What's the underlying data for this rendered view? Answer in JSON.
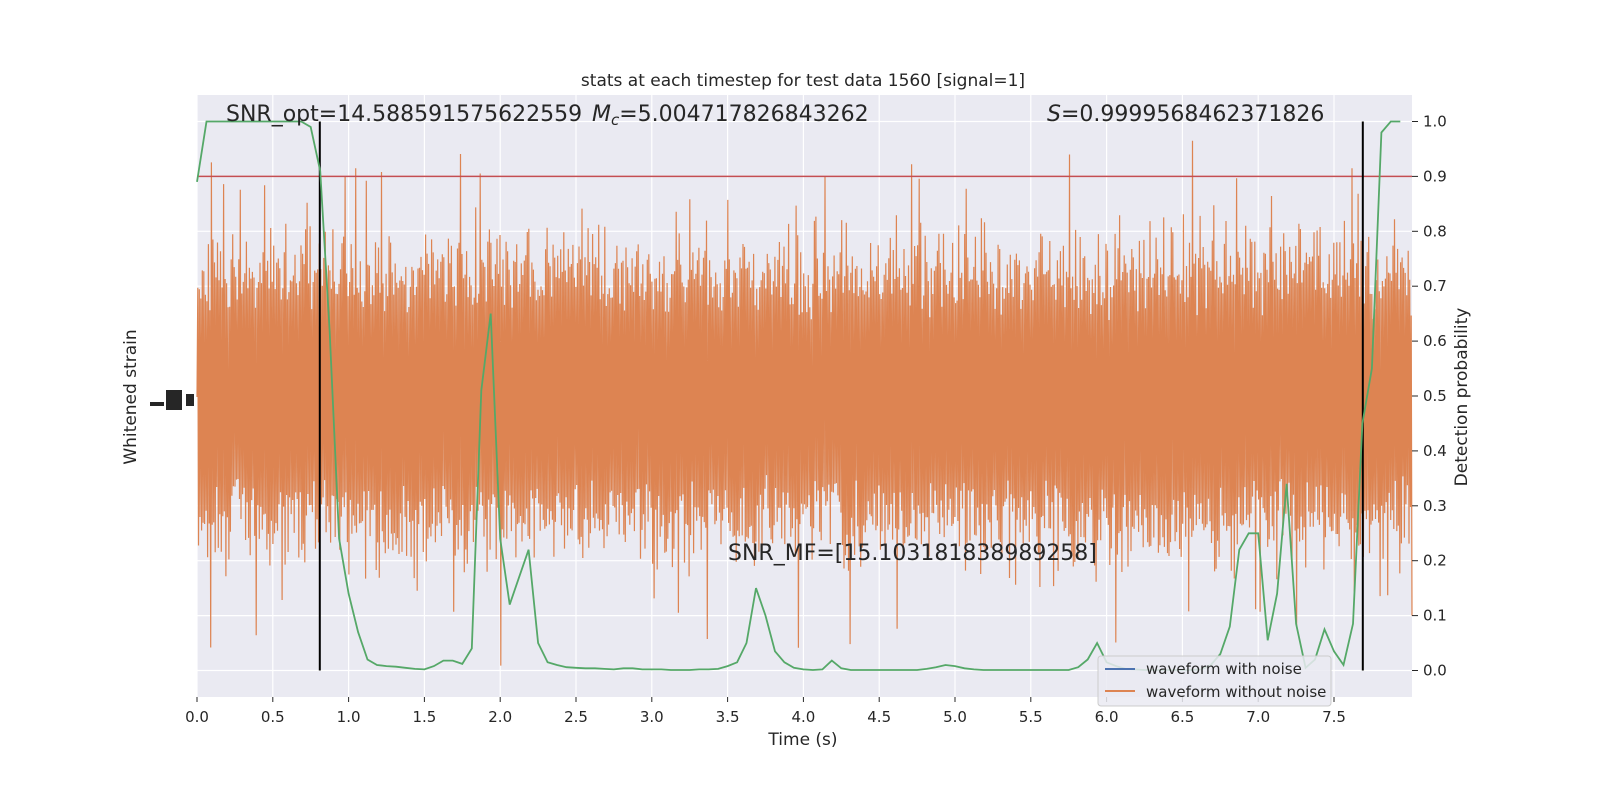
{
  "chart_data": {
    "type": "line",
    "title": "stats at each timestep for test data 1560 [signal=1]",
    "xlabel": "Time (s)",
    "ylabel_left": "Whitened strain",
    "ylabel_right": "Detection probability",
    "xlim": [
      0.0,
      8.0
    ],
    "ylim_right": [
      -0.05,
      1.05
    ],
    "grid": true,
    "legend_position": "lower-right",
    "x_ticks": [
      "0.0",
      "0.5",
      "1.0",
      "1.5",
      "2.0",
      "2.5",
      "3.0",
      "3.5",
      "4.0",
      "4.5",
      "5.0",
      "5.5",
      "6.0",
      "6.5",
      "7.0",
      "7.5"
    ],
    "y_right_ticks": [
      "0.0",
      "0.1",
      "0.2",
      "0.3",
      "0.4",
      "0.5",
      "0.6",
      "0.7",
      "0.8",
      "0.9",
      "1.0"
    ],
    "annotations": {
      "snr_opt": "SNR_opt=14.588591575622559",
      "mc_symbol": "M",
      "mc_sub": "c",
      "mc_value": "=5.004717826843262",
      "s_symbol": "S",
      "s_value": "=0.9999568462371826",
      "snr_mf": "SNR_MF=[15.103181838989258]"
    },
    "threshold": 0.9,
    "vertical_markers": [
      0.81,
      7.69
    ],
    "series": [
      {
        "name": "waveform with noise",
        "color": "#4c72b0"
      },
      {
        "name": "waveform without noise",
        "color": "#dd8452"
      }
    ],
    "detection_probability": {
      "color": "#55a868",
      "x": [
        0.0,
        0.0625,
        0.125,
        0.1875,
        0.25,
        0.3125,
        0.375,
        0.4375,
        0.5,
        0.5625,
        0.625,
        0.6875,
        0.75,
        0.8125,
        0.875,
        0.9375,
        1.0,
        1.0625,
        1.125,
        1.1875,
        1.25,
        1.3125,
        1.375,
        1.4375,
        1.5,
        1.5625,
        1.625,
        1.6875,
        1.75,
        1.8125,
        1.875,
        1.9375,
        2.0,
        2.0625,
        2.125,
        2.1875,
        2.25,
        2.3125,
        2.375,
        2.4375,
        2.5,
        2.5625,
        2.625,
        2.6875,
        2.75,
        2.8125,
        2.875,
        2.9375,
        3.0,
        3.0625,
        3.125,
        3.1875,
        3.25,
        3.3125,
        3.375,
        3.4375,
        3.5,
        3.5625,
        3.625,
        3.6875,
        3.75,
        3.8125,
        3.875,
        3.9375,
        4.0,
        4.0625,
        4.125,
        4.1875,
        4.25,
        4.3125,
        4.375,
        4.4375,
        4.5,
        4.5625,
        4.625,
        4.6875,
        4.75,
        4.8125,
        4.875,
        4.9375,
        5.0,
        5.0625,
        5.125,
        5.1875,
        5.25,
        5.3125,
        5.375,
        5.4375,
        5.5,
        5.5625,
        5.625,
        5.6875,
        5.75,
        5.8125,
        5.875,
        5.9375,
        6.0,
        6.0625,
        6.125,
        6.1875,
        6.25,
        6.3125,
        6.375,
        6.4375,
        6.5,
        6.5625,
        6.625,
        6.6875,
        6.75,
        6.8125,
        6.875,
        6.9375,
        7.0,
        7.0625,
        7.125,
        7.1875,
        7.25,
        7.3125,
        7.375,
        7.4375,
        7.5,
        7.5625,
        7.625,
        7.6875,
        7.75,
        7.8125,
        7.875,
        7.9375
      ],
      "y": [
        0.89,
        1.0,
        1.0,
        1.0,
        1.0,
        1.0,
        1.0,
        1.0,
        1.0,
        1.0,
        1.0,
        1.0,
        0.99,
        0.91,
        0.62,
        0.24,
        0.14,
        0.07,
        0.02,
        0.01,
        0.008,
        0.007,
        0.005,
        0.003,
        0.002,
        0.008,
        0.018,
        0.018,
        0.012,
        0.04,
        0.51,
        0.65,
        0.24,
        0.12,
        0.17,
        0.22,
        0.05,
        0.015,
        0.01,
        0.006,
        0.005,
        0.004,
        0.004,
        0.003,
        0.002,
        0.004,
        0.004,
        0.002,
        0.002,
        0.002,
        0.001,
        0.001,
        0.001,
        0.002,
        0.002,
        0.003,
        0.008,
        0.015,
        0.05,
        0.15,
        0.1,
        0.035,
        0.015,
        0.005,
        0.002,
        0.001,
        0.002,
        0.018,
        0.004,
        0.001,
        0.001,
        0.001,
        0.001,
        0.001,
        0.001,
        0.001,
        0.001,
        0.003,
        0.006,
        0.01,
        0.008,
        0.004,
        0.002,
        0.001,
        0.001,
        0.001,
        0.001,
        0.001,
        0.001,
        0.001,
        0.001,
        0.001,
        0.001,
        0.006,
        0.02,
        0.05,
        0.015,
        0.008,
        0.003,
        0.002,
        0.001,
        0.001,
        0.001,
        0.001,
        0.001,
        0.001,
        0.002,
        0.01,
        0.03,
        0.08,
        0.22,
        0.25,
        0.25,
        0.055,
        0.14,
        0.34,
        0.085,
        0.005,
        0.02,
        0.075,
        0.035,
        0.01,
        0.085,
        0.45,
        0.55,
        0.98,
        1.0,
        1.0
      ]
    }
  }
}
